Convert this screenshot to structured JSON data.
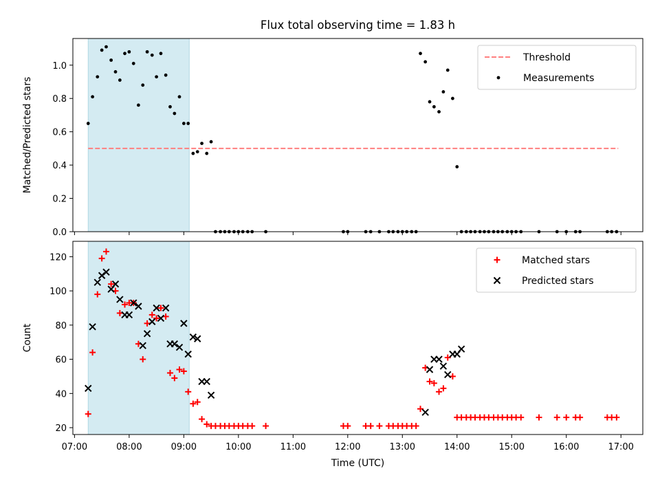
{
  "chart_data": [
    {
      "type": "scatter",
      "title": "Flux total observing time = 1.83 h",
      "xlabel": "",
      "ylabel": "Matched/Predicted stars",
      "xlim": [
        6.97,
        17.4
      ],
      "ylim": [
        0.0,
        1.16
      ],
      "yticks": [
        0.0,
        0.2,
        0.4,
        0.6,
        0.8,
        1.0
      ],
      "ytick_labels": [
        "0.0",
        "0.2",
        "0.4",
        "0.6",
        "0.8",
        "1.0"
      ],
      "xticks": [
        7,
        8,
        9,
        10,
        11,
        12,
        13,
        14,
        15,
        16,
        17
      ],
      "shaded_span": [
        7.25,
        9.1
      ],
      "legend_position": "top-right",
      "legend": [
        {
          "label": "Threshold",
          "style": "dashed-line",
          "color": "#ff7f7f"
        },
        {
          "label": "Measurements",
          "style": "dot",
          "color": "#000000"
        }
      ],
      "threshold": {
        "name": "Threshold",
        "value": 0.5,
        "x": [
          7.25,
          16.95
        ],
        "color": "#ff7f7f"
      },
      "series": [
        {
          "name": "Measurements",
          "marker": "dot",
          "color": "#000000",
          "x": [
            7.25,
            7.33,
            7.42,
            7.5,
            7.58,
            7.67,
            7.75,
            7.83,
            7.92,
            8.0,
            8.08,
            8.17,
            8.25,
            8.33,
            8.42,
            8.5,
            8.58,
            8.67,
            8.75,
            8.83,
            8.92,
            9.0,
            9.08,
            9.17,
            9.25,
            9.33,
            9.42,
            9.5,
            9.58,
            9.67,
            9.75,
            9.83,
            9.92,
            10.0,
            10.08,
            10.17,
            10.25,
            10.5,
            11.92,
            12.0,
            12.33,
            12.42,
            12.58,
            12.75,
            12.83,
            12.92,
            13.0,
            13.08,
            13.17,
            13.25,
            13.33,
            13.42,
            13.5,
            13.58,
            13.67,
            13.75,
            13.83,
            13.92,
            14.0,
            14.08,
            14.17,
            14.25,
            14.33,
            14.42,
            14.5,
            14.58,
            14.67,
            14.75,
            14.83,
            14.92,
            15.0,
            15.08,
            15.17,
            15.5,
            15.83,
            16.0,
            16.17,
            16.25,
            16.75,
            16.83,
            16.92
          ],
          "y": [
            0.65,
            0.81,
            0.93,
            1.09,
            1.11,
            1.03,
            0.96,
            0.91,
            1.07,
            1.08,
            1.01,
            0.76,
            0.88,
            1.08,
            1.06,
            0.93,
            1.07,
            0.94,
            0.75,
            0.71,
            0.81,
            0.65,
            0.65,
            0.47,
            0.48,
            0.53,
            0.47,
            0.54,
            0.0,
            0.0,
            0.0,
            0.0,
            0.0,
            0.0,
            0.0,
            0.0,
            0.0,
            0.0,
            0.0,
            0.0,
            0.0,
            0.0,
            0.0,
            0.0,
            0.0,
            0.0,
            0.0,
            0.0,
            0.0,
            0.0,
            1.07,
            1.02,
            0.78,
            0.75,
            0.72,
            0.84,
            0.97,
            0.8,
            0.39,
            0.0,
            0.0,
            0.0,
            0.0,
            0.0,
            0.0,
            0.0,
            0.0,
            0.0,
            0.0,
            0.0,
            0.0,
            0.0,
            0.0,
            0.0,
            0.0,
            0.0,
            0.0,
            0.0,
            0.0,
            0.0,
            0.0
          ]
        }
      ]
    },
    {
      "type": "scatter",
      "title": "",
      "xlabel": "Time (UTC)",
      "ylabel": "Count",
      "xlim": [
        6.97,
        17.4
      ],
      "ylim": [
        16,
        129
      ],
      "yticks": [
        20,
        40,
        60,
        80,
        100,
        120
      ],
      "ytick_labels": [
        "20",
        "40",
        "60",
        "80",
        "100",
        "120"
      ],
      "xticks": [
        7,
        8,
        9,
        10,
        11,
        12,
        13,
        14,
        15,
        16,
        17
      ],
      "xtick_labels": [
        "07:00",
        "08:00",
        "09:00",
        "10:00",
        "11:00",
        "12:00",
        "13:00",
        "14:00",
        "15:00",
        "16:00",
        "17:00"
      ],
      "shaded_span": [
        7.25,
        9.1
      ],
      "legend_position": "top-right",
      "legend": [
        {
          "label": "Matched stars",
          "style": "plus",
          "color": "#ff0000"
        },
        {
          "label": "Predicted stars",
          "style": "x",
          "color": "#000000"
        }
      ],
      "series": [
        {
          "name": "Matched stars",
          "marker": "plus",
          "color": "#ff0000",
          "x": [
            7.25,
            7.33,
            7.42,
            7.5,
            7.58,
            7.67,
            7.75,
            7.83,
            7.92,
            8.0,
            8.08,
            8.17,
            8.25,
            8.33,
            8.42,
            8.5,
            8.58,
            8.67,
            8.75,
            8.83,
            8.92,
            9.0,
            9.08,
            9.17,
            9.25,
            9.33,
            9.42,
            9.5,
            9.58,
            9.67,
            9.75,
            9.83,
            9.92,
            10.0,
            10.08,
            10.17,
            10.25,
            10.5,
            11.92,
            12.0,
            12.33,
            12.42,
            12.58,
            12.75,
            12.83,
            12.92,
            13.0,
            13.08,
            13.17,
            13.25,
            13.33,
            13.42,
            13.5,
            13.58,
            13.67,
            13.75,
            13.83,
            13.92,
            14.0,
            14.08,
            14.17,
            14.25,
            14.33,
            14.42,
            14.5,
            14.58,
            14.67,
            14.75,
            14.83,
            14.92,
            15.0,
            15.08,
            15.17,
            15.5,
            15.83,
            16.0,
            16.17,
            16.25,
            16.75,
            16.83,
            16.92
          ],
          "y": [
            28,
            64,
            98,
            119,
            123,
            104,
            100,
            87,
            92,
            93,
            93,
            69,
            60,
            81,
            86,
            84,
            90,
            85,
            52,
            49,
            54,
            53,
            41,
            34,
            35,
            25,
            22,
            21,
            21,
            21,
            21,
            21,
            21,
            21,
            21,
            21,
            21,
            21,
            21,
            21,
            21,
            21,
            21,
            21,
            21,
            21,
            21,
            21,
            21,
            21,
            31,
            55,
            47,
            46,
            41,
            43,
            61,
            50,
            26,
            26,
            26,
            26,
            26,
            26,
            26,
            26,
            26,
            26,
            26,
            26,
            26,
            26,
            26,
            26,
            26,
            26,
            26,
            26,
            26,
            26,
            26
          ]
        },
        {
          "name": "Predicted stars",
          "marker": "x",
          "color": "#000000",
          "x": [
            7.25,
            7.33,
            7.42,
            7.5,
            7.58,
            7.67,
            7.75,
            7.83,
            7.92,
            8.0,
            8.08,
            8.17,
            8.25,
            8.33,
            8.42,
            8.5,
            8.58,
            8.67,
            8.75,
            8.83,
            8.92,
            9.0,
            9.08,
            9.17,
            9.25,
            9.33,
            9.42,
            9.5,
            13.42,
            13.5,
            13.58,
            13.67,
            13.75,
            13.83,
            13.92,
            14.0,
            14.08
          ],
          "y": [
            43,
            79,
            105,
            109,
            111,
            101,
            104,
            95,
            86,
            86,
            93,
            91,
            68,
            75,
            82,
            90,
            84,
            90,
            69,
            69,
            67,
            81,
            63,
            73,
            72,
            47,
            47,
            39,
            29,
            54,
            60,
            60,
            56,
            51,
            63,
            63,
            66
          ]
        }
      ]
    }
  ]
}
